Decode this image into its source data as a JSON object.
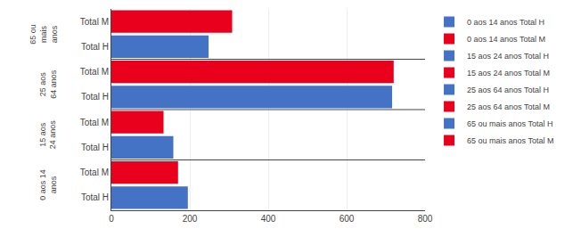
{
  "chart_data": {
    "type": "bar",
    "orientation": "horizontal",
    "categories": [
      [
        "0 aos 14\nanos",
        "Total H"
      ],
      [
        "0 aos 14\nanos",
        "Total M"
      ],
      [
        "15 aos\n24 anos",
        "Total H"
      ],
      [
        "15 aos\n24 anos",
        "Total M"
      ],
      [
        "25 aos\n64 anos",
        "Total H"
      ],
      [
        "25 aos\n64 anos",
        "Total M"
      ],
      [
        "65 ou\nmais\nanos",
        "Total H"
      ],
      [
        "65 ou\nmais\nanos",
        "Total M"
      ]
    ],
    "series": [
      {
        "name": "0 aos 14 anos Total H",
        "color": "#4472C4",
        "values": [
          195,
          null,
          null,
          null,
          null,
          null,
          null,
          null
        ]
      },
      {
        "name": "0 aos 14 anos Total M",
        "color": "#E8001C",
        "values": [
          null,
          170,
          null,
          null,
          null,
          null,
          null,
          null
        ]
      },
      {
        "name": "15 aos 24 anos Total H",
        "color": "#4472C4",
        "values": [
          null,
          null,
          158,
          null,
          null,
          null,
          null,
          null
        ]
      },
      {
        "name": "15 aos 24 anos Total M",
        "color": "#E8001C",
        "values": [
          null,
          null,
          null,
          133,
          null,
          null,
          null,
          null
        ]
      },
      {
        "name": "25 aos 64 anos Total H",
        "color": "#4472C4",
        "values": [
          null,
          null,
          null,
          null,
          716,
          null,
          null,
          null
        ]
      },
      {
        "name": "25 aos 64 anos Total M",
        "color": "#E8001C",
        "values": [
          null,
          null,
          null,
          null,
          null,
          720,
          null,
          null
        ]
      },
      {
        "name": "65 ou mais anos Total H",
        "color": "#4472C4",
        "values": [
          null,
          null,
          null,
          null,
          null,
          null,
          248,
          null
        ]
      },
      {
        "name": "65 ou mais anos Total M",
        "color": "#E8001C",
        "values": [
          null,
          null,
          null,
          null,
          null,
          null,
          null,
          308
        ]
      }
    ],
    "xlim": [
      0,
      800
    ],
    "xticks": [
      0,
      200,
      400,
      600,
      800
    ],
    "grid": true,
    "legend": "right"
  }
}
